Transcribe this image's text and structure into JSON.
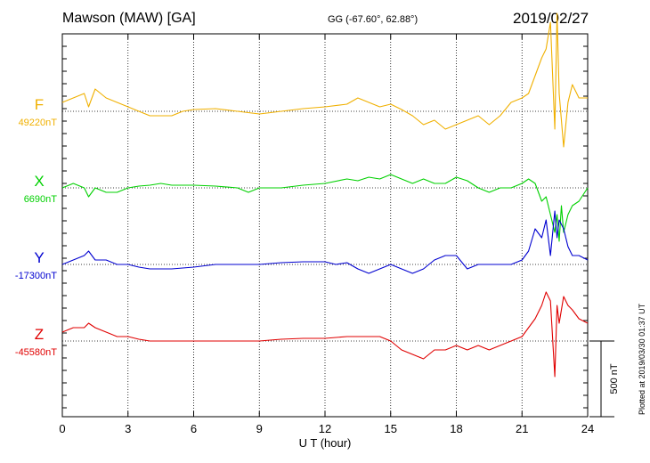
{
  "header": {
    "title": "Mawson (MAW)  [GA]",
    "coords": "GG (-67.60°,  62.88°)",
    "date": "2019/02/27"
  },
  "footer_note": "Plotted at 2019/03/30 01:37 UT",
  "chart_data": {
    "type": "line",
    "xlabel": "U T (hour)",
    "xlim": [
      0,
      24
    ],
    "xticks": [
      "0",
      "3",
      "6",
      "9",
      "12",
      "15",
      "18",
      "21",
      "24"
    ],
    "scale_bar": {
      "label": "500 nT",
      "value": 500
    },
    "grid": true,
    "series": [
      {
        "name": "F",
        "baseline_label": "49220nT",
        "color": "#f0b000",
        "points": [
          [
            0,
            -10
          ],
          [
            0.5,
            -15
          ],
          [
            1,
            -20
          ],
          [
            1.2,
            -5
          ],
          [
            1.5,
            -25
          ],
          [
            2,
            -15
          ],
          [
            2.5,
            -10
          ],
          [
            3,
            -5
          ],
          [
            3.5,
            0
          ],
          [
            4,
            5
          ],
          [
            4.5,
            5
          ],
          [
            5,
            5
          ],
          [
            5.5,
            0
          ],
          [
            6,
            -2
          ],
          [
            7,
            -3
          ],
          [
            8,
            0
          ],
          [
            9,
            3
          ],
          [
            10,
            0
          ],
          [
            11,
            -3
          ],
          [
            12,
            -5
          ],
          [
            13,
            -8
          ],
          [
            13.5,
            -15
          ],
          [
            14,
            -10
          ],
          [
            14.5,
            -5
          ],
          [
            15,
            -8
          ],
          [
            15.5,
            -2
          ],
          [
            16,
            5
          ],
          [
            16.5,
            15
          ],
          [
            17,
            10
          ],
          [
            17.5,
            20
          ],
          [
            18,
            15
          ],
          [
            18.5,
            10
          ],
          [
            19,
            5
          ],
          [
            19.5,
            15
          ],
          [
            20,
            5
          ],
          [
            20.5,
            -10
          ],
          [
            21,
            -15
          ],
          [
            21.3,
            -20
          ],
          [
            21.6,
            -40
          ],
          [
            21.9,
            -60
          ],
          [
            22.1,
            -70
          ],
          [
            22.3,
            -100
          ],
          [
            22.5,
            20
          ],
          [
            22.6,
            -110
          ],
          [
            22.7,
            -20
          ],
          [
            22.9,
            40
          ],
          [
            23.1,
            -10
          ],
          [
            23.3,
            -30
          ],
          [
            23.6,
            -15
          ],
          [
            24,
            -15
          ]
        ]
      },
      {
        "name": "X",
        "baseline_label": "6690nT",
        "color": "#00d000",
        "points": [
          [
            0,
            0
          ],
          [
            0.5,
            -5
          ],
          [
            1,
            0
          ],
          [
            1.2,
            10
          ],
          [
            1.5,
            0
          ],
          [
            2,
            5
          ],
          [
            2.5,
            5
          ],
          [
            3,
            0
          ],
          [
            3.5,
            -2
          ],
          [
            4,
            -3
          ],
          [
            4.5,
            -5
          ],
          [
            5,
            -3
          ],
          [
            6,
            -3
          ],
          [
            7,
            -2
          ],
          [
            8,
            0
          ],
          [
            8.5,
            5
          ],
          [
            9,
            0
          ],
          [
            10,
            0
          ],
          [
            11,
            -3
          ],
          [
            12,
            -5
          ],
          [
            13,
            -10
          ],
          [
            13.5,
            -8
          ],
          [
            14,
            -12
          ],
          [
            14.5,
            -10
          ],
          [
            15,
            -15
          ],
          [
            15.5,
            -10
          ],
          [
            16,
            -5
          ],
          [
            16.5,
            -10
          ],
          [
            17,
            -5
          ],
          [
            17.5,
            -5
          ],
          [
            18,
            -12
          ],
          [
            18.5,
            -8
          ],
          [
            19,
            0
          ],
          [
            19.5,
            5
          ],
          [
            20,
            0
          ],
          [
            20.5,
            0
          ],
          [
            21,
            -5
          ],
          [
            21.3,
            -10
          ],
          [
            21.6,
            -5
          ],
          [
            21.9,
            15
          ],
          [
            22.1,
            10
          ],
          [
            22.3,
            30
          ],
          [
            22.5,
            50
          ],
          [
            22.6,
            30
          ],
          [
            22.7,
            60
          ],
          [
            22.8,
            20
          ],
          [
            22.9,
            50
          ],
          [
            23.1,
            30
          ],
          [
            23.3,
            20
          ],
          [
            23.6,
            15
          ],
          [
            24,
            0
          ]
        ]
      },
      {
        "name": "Y",
        "baseline_label": "-17300nT",
        "color": "#0000d0",
        "points": [
          [
            0,
            0
          ],
          [
            0.5,
            -5
          ],
          [
            1,
            -10
          ],
          [
            1.2,
            -15
          ],
          [
            1.5,
            -5
          ],
          [
            2,
            -5
          ],
          [
            2.5,
            0
          ],
          [
            3,
            0
          ],
          [
            3.5,
            3
          ],
          [
            4,
            5
          ],
          [
            4.5,
            5
          ],
          [
            5,
            5
          ],
          [
            6,
            3
          ],
          [
            7,
            0
          ],
          [
            8,
            0
          ],
          [
            9,
            0
          ],
          [
            10,
            -2
          ],
          [
            11,
            -3
          ],
          [
            12,
            -3
          ],
          [
            12.5,
            0
          ],
          [
            13,
            -2
          ],
          [
            13.5,
            5
          ],
          [
            14,
            10
          ],
          [
            14.5,
            5
          ],
          [
            15,
            0
          ],
          [
            15.5,
            5
          ],
          [
            16,
            10
          ],
          [
            16.5,
            5
          ],
          [
            17,
            -5
          ],
          [
            17.5,
            -10
          ],
          [
            18,
            -10
          ],
          [
            18.5,
            5
          ],
          [
            19,
            0
          ],
          [
            19.5,
            0
          ],
          [
            20,
            0
          ],
          [
            20.5,
            0
          ],
          [
            21,
            -5
          ],
          [
            21.3,
            -15
          ],
          [
            21.6,
            -40
          ],
          [
            21.9,
            -30
          ],
          [
            22.1,
            -50
          ],
          [
            22.3,
            -10
          ],
          [
            22.5,
            -60
          ],
          [
            22.6,
            -30
          ],
          [
            22.7,
            -50
          ],
          [
            22.9,
            -40
          ],
          [
            23.1,
            -20
          ],
          [
            23.3,
            -10
          ],
          [
            23.6,
            -10
          ],
          [
            24,
            -5
          ]
        ]
      },
      {
        "name": "Z",
        "baseline_label": "-45580nT",
        "color": "#e00000",
        "points": [
          [
            0,
            -10
          ],
          [
            0.5,
            -15
          ],
          [
            1,
            -15
          ],
          [
            1.2,
            -20
          ],
          [
            1.5,
            -15
          ],
          [
            2,
            -10
          ],
          [
            2.5,
            -5
          ],
          [
            3,
            -5
          ],
          [
            3.5,
            -2
          ],
          [
            4,
            0
          ],
          [
            4.5,
            0
          ],
          [
            5,
            0
          ],
          [
            6,
            0
          ],
          [
            7,
            0
          ],
          [
            8,
            0
          ],
          [
            9,
            0
          ],
          [
            10,
            -2
          ],
          [
            11,
            -3
          ],
          [
            12,
            -3
          ],
          [
            13,
            -5
          ],
          [
            14,
            -5
          ],
          [
            14.5,
            -5
          ],
          [
            15,
            0
          ],
          [
            15.5,
            10
          ],
          [
            16,
            15
          ],
          [
            16.5,
            20
          ],
          [
            17,
            10
          ],
          [
            17.5,
            10
          ],
          [
            18,
            5
          ],
          [
            18.5,
            10
          ],
          [
            19,
            5
          ],
          [
            19.5,
            10
          ],
          [
            20,
            5
          ],
          [
            20.5,
            0
          ],
          [
            21,
            -5
          ],
          [
            21.3,
            -15
          ],
          [
            21.6,
            -25
          ],
          [
            21.9,
            -40
          ],
          [
            22.1,
            -55
          ],
          [
            22.3,
            -45
          ],
          [
            22.5,
            40
          ],
          [
            22.6,
            -40
          ],
          [
            22.7,
            -20
          ],
          [
            22.9,
            -50
          ],
          [
            23.1,
            -40
          ],
          [
            23.3,
            -35
          ],
          [
            23.6,
            -25
          ],
          [
            24,
            -20
          ]
        ]
      }
    ]
  }
}
